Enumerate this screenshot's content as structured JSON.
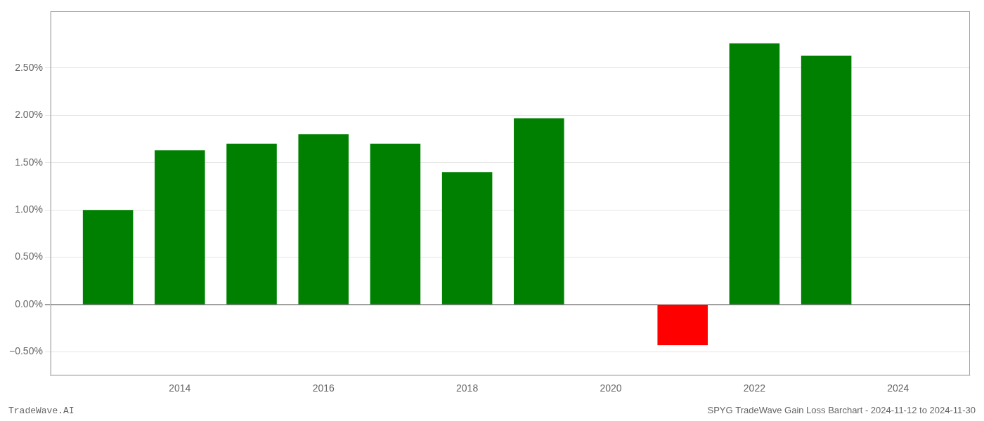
{
  "chart_data": {
    "type": "bar",
    "x": [
      2013,
      2014,
      2015,
      2016,
      2017,
      2018,
      2019,
      2021,
      2022,
      2023
    ],
    "values": [
      1.0,
      1.63,
      1.7,
      1.8,
      1.7,
      1.4,
      1.97,
      -0.43,
      2.76,
      2.63
    ],
    "colors": [
      "#008000",
      "#008000",
      "#008000",
      "#008000",
      "#008000",
      "#008000",
      "#008000",
      "#ff0000",
      "#008000",
      "#008000"
    ],
    "xlim": [
      2012.2,
      2025.0
    ],
    "xticks": [
      2014,
      2016,
      2018,
      2020,
      2022,
      2024
    ],
    "ylim": [
      -0.75,
      3.1
    ],
    "yticks": [
      {
        "value": -0.5,
        "label": "−0.50%"
      },
      {
        "value": 0.0,
        "label": "0.00%"
      },
      {
        "value": 0.5,
        "label": "0.50%"
      },
      {
        "value": 1.0,
        "label": "1.00%"
      },
      {
        "value": 1.5,
        "label": "1.50%"
      },
      {
        "value": 2.0,
        "label": "2.00%"
      },
      {
        "value": 2.5,
        "label": "2.50%"
      }
    ],
    "grid": true,
    "annotations": [
      "TradeWave.AI",
      "SPYG TradeWave Gain Loss Barchart - 2024-11-12 to 2024-11-30"
    ]
  }
}
